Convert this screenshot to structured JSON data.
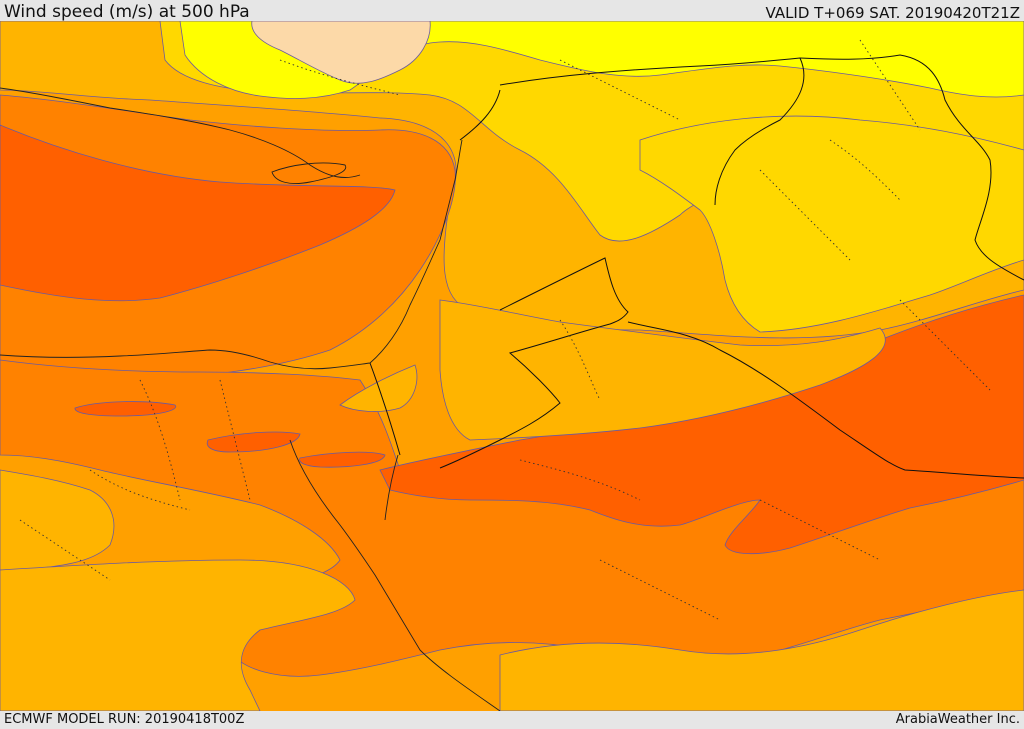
{
  "header": {
    "title": "Wind speed (m/s) at 500 hPa",
    "valid": "VALID T+069 SAT. 20190420T21Z"
  },
  "footer": {
    "model_run": "ECMWF MODEL RUN: 20190418T00Z",
    "credit": "ArabiaWeather Inc."
  },
  "map": {
    "field": "Wind speed at 500 hPa",
    "colors": {
      "very_low": "#fcd9a8",
      "low": "#ffff00",
      "low_mid": "#ffd800",
      "mid": "#ffb400",
      "mid_high": "#ffa000",
      "high": "#ff8200",
      "very_high": "#ff6000"
    }
  }
}
